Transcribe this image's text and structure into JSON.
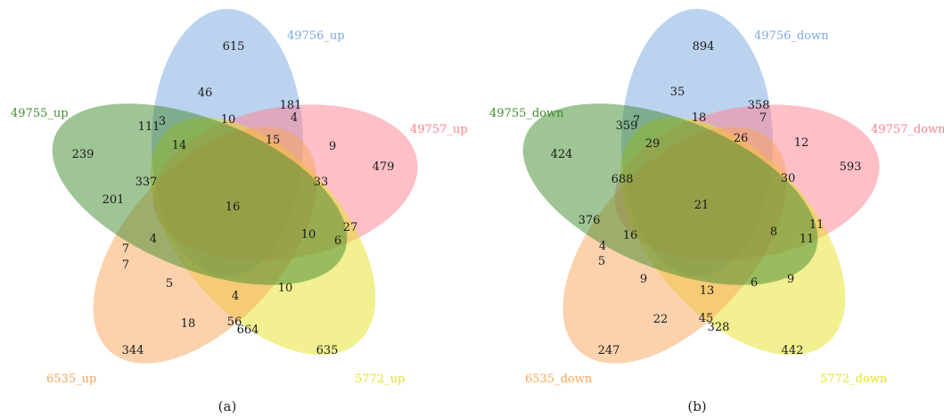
{
  "diagrams": [
    {
      "caption": "(a)",
      "sets": [
        {
          "label": "49756_up",
          "color": "#7aa8e0"
        },
        {
          "label": "49757_up",
          "color": "#ff7f8f"
        },
        {
          "label": "5772_up",
          "color": "#e6e224"
        },
        {
          "label": "6535_up",
          "color": "#f7a55a"
        },
        {
          "label": "49755_up",
          "color": "#3f8a2c"
        }
      ],
      "regions": [
        "615",
        "479",
        "635",
        "344",
        "239",
        "181",
        "4",
        "27",
        "6",
        "56",
        "664",
        "18",
        "7",
        "7",
        "111",
        "3",
        "46",
        "10",
        "9",
        "33",
        "10",
        "10",
        "5",
        "201",
        "14",
        "15",
        "4",
        "337",
        "16",
        "4"
      ]
    },
    {
      "caption": "(b)",
      "sets": [
        {
          "label": "49756_down",
          "color": "#7aa8e0"
        },
        {
          "label": "49757_down",
          "color": "#ff7f8f"
        },
        {
          "label": "5772_down",
          "color": "#e6e224"
        },
        {
          "label": "6535_down",
          "color": "#f7a55a"
        },
        {
          "label": "49755_down",
          "color": "#3f8a2c"
        }
      ],
      "regions": [
        "894",
        "593",
        "442",
        "247",
        "424",
        "358",
        "7",
        "11",
        "11",
        "45",
        "328",
        "22",
        "4",
        "5",
        "359",
        "7",
        "35",
        "18",
        "12",
        "30",
        "8",
        "6",
        "9",
        "376",
        "29",
        "26",
        "9",
        "688",
        "21",
        "16"
      ]
    }
  ]
}
